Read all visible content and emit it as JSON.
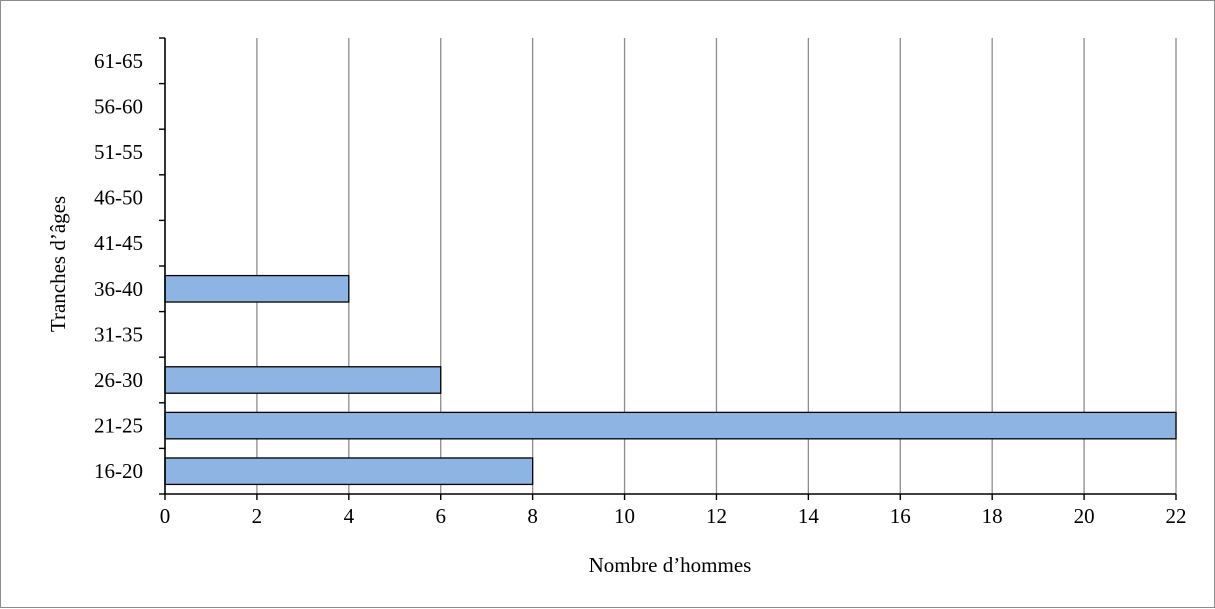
{
  "chart_data": {
    "type": "bar",
    "orientation": "horizontal",
    "categories": [
      "16-20",
      "21-25",
      "26-30",
      "31-35",
      "36-40",
      "41-45",
      "46-50",
      "51-55",
      "56-60",
      "61-65"
    ],
    "values": [
      8,
      22,
      6,
      0,
      4,
      0,
      0,
      0,
      0,
      0
    ],
    "xlabel": "Nombre d’hommes",
    "ylabel": "Tranches d’âges",
    "xlim": [
      0,
      22
    ],
    "xticks": [
      0,
      2,
      4,
      6,
      8,
      10,
      12,
      14,
      16,
      18,
      20,
      22
    ],
    "grid": "vertical",
    "legend": "none",
    "colors": {
      "bar_fill": "#8eb4e3",
      "bar_stroke": "#000000",
      "grid": "#8c8c8c",
      "axis": "#000000"
    }
  }
}
